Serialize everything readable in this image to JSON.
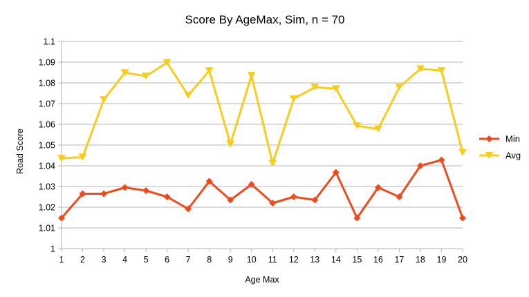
{
  "chart_data": {
    "type": "line",
    "title": "Score By AgeMax, Sim, n = 70",
    "xlabel": "Age Max",
    "ylabel": "Road Score",
    "categories": [
      "1",
      "2",
      "3",
      "4",
      "5",
      "6",
      "7",
      "8",
      "9",
      "10",
      "11",
      "12",
      "13",
      "14",
      "15",
      "16",
      "17",
      "18",
      "19",
      "20"
    ],
    "y_ticks": [
      "1",
      "1.01",
      "1.02",
      "1.03",
      "1.04",
      "1.05",
      "1.06",
      "1.07",
      "1.08",
      "1.09",
      "1.1"
    ],
    "ylim": [
      1,
      1.1
    ],
    "grid": true,
    "legend_position": "right",
    "series": [
      {
        "name": "Min",
        "color": "#f04a1c",
        "marker": "diamond",
        "values": [
          1.0148,
          1.0265,
          1.0265,
          1.0295,
          1.028,
          1.025,
          1.0192,
          1.0325,
          1.0235,
          1.031,
          1.022,
          1.025,
          1.0235,
          1.0368,
          1.0148,
          1.0295,
          1.025,
          1.04,
          1.0428,
          1.0148
        ]
      },
      {
        "name": "Avg",
        "color": "#f9cc1b",
        "marker": "triangle-down",
        "values": [
          1.0436,
          1.0442,
          1.0719,
          1.0849,
          1.0833,
          1.0898,
          1.074,
          1.0859,
          1.0505,
          1.0836,
          1.0412,
          1.0723,
          1.0779,
          1.0772,
          1.0593,
          1.0577,
          1.0779,
          1.0868,
          1.0859,
          1.0464
        ]
      }
    ]
  }
}
